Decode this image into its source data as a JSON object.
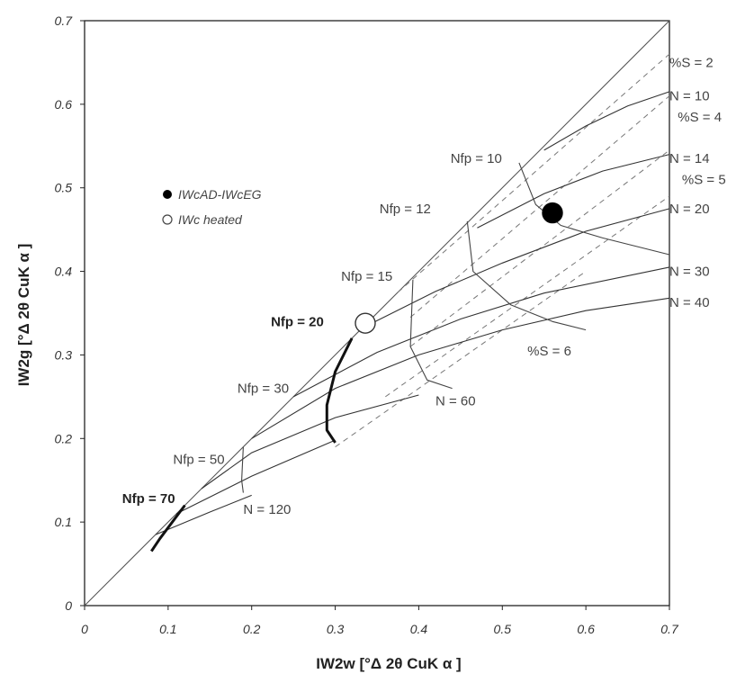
{
  "chart_data": {
    "type": "line",
    "xlabel": "IW2w [°Δ 2θ CuK α ]",
    "ylabel": "IW2g [°Δ 2θ CuK α ]",
    "xlim": [
      0,
      0.7
    ],
    "ylim": [
      0,
      0.7
    ],
    "x_ticks": [
      "0",
      "0.1",
      "0.2",
      "0.3",
      "0.4",
      "0.5",
      "0.6",
      "0.7"
    ],
    "y_ticks": [
      "0",
      "0.1",
      "0.2",
      "0.3",
      "0.4",
      "0.5",
      "0.6",
      "0.7"
    ],
    "grid": false,
    "legend": {
      "placement": "upper-left",
      "entries": [
        {
          "label": "IWcAD-IWcEG",
          "marker": "filled-circle"
        },
        {
          "label": "IWc heated",
          "marker": "open-circle"
        }
      ]
    },
    "series": [
      {
        "name": "IWcAD-IWcEG",
        "style": "filled-marker",
        "x": [
          0.56
        ],
        "y": [
          0.47
        ]
      },
      {
        "name": "IWc heated",
        "style": "open-marker",
        "x": [
          0.336
        ],
        "y": [
          0.338
        ]
      }
    ],
    "reference_lines": [
      {
        "kind": "identity",
        "points": [
          [
            0,
            0
          ],
          [
            0.7,
            0.7
          ]
        ]
      }
    ],
    "n_curves": [
      {
        "label": "N = 10",
        "points": [
          [
            0.55,
            0.545
          ],
          [
            0.6,
            0.574
          ],
          [
            0.65,
            0.598
          ],
          [
            0.7,
            0.615
          ]
        ]
      },
      {
        "label": "N = 14",
        "points": [
          [
            0.47,
            0.452
          ],
          [
            0.55,
            0.493
          ],
          [
            0.62,
            0.52
          ],
          [
            0.7,
            0.54
          ]
        ]
      },
      {
        "label": "N = 20",
        "points": [
          [
            0.34,
            0.336
          ],
          [
            0.42,
            0.376
          ],
          [
            0.5,
            0.41
          ],
          [
            0.6,
            0.448
          ],
          [
            0.7,
            0.475
          ]
        ]
      },
      {
        "label": "N = 30",
        "points": [
          [
            0.25,
            0.25
          ],
          [
            0.35,
            0.303
          ],
          [
            0.45,
            0.343
          ],
          [
            0.55,
            0.374
          ],
          [
            0.7,
            0.405
          ]
        ]
      },
      {
        "label": "N = 40",
        "points": [
          [
            0.2,
            0.2
          ],
          [
            0.3,
            0.26
          ],
          [
            0.4,
            0.3
          ],
          [
            0.5,
            0.33
          ],
          [
            0.6,
            0.353
          ],
          [
            0.7,
            0.368
          ]
        ]
      },
      {
        "label": "",
        "points": [
          [
            0.14,
            0.14
          ],
          [
            0.2,
            0.183
          ],
          [
            0.3,
            0.225
          ],
          [
            0.4,
            0.252
          ]
        ]
      },
      {
        "label": "",
        "points": [
          [
            0.11,
            0.11
          ],
          [
            0.2,
            0.155
          ],
          [
            0.3,
            0.198
          ]
        ]
      },
      {
        "label": "",
        "points": [
          [
            0.085,
            0.085
          ],
          [
            0.15,
            0.112
          ],
          [
            0.2,
            0.132
          ]
        ]
      }
    ],
    "s_lines": [
      {
        "label": "%S = 2",
        "points": [
          [
            0.375,
            0.375
          ],
          [
            0.7,
            0.66
          ]
        ]
      },
      {
        "label": "%S = 4",
        "points": [
          [
            0.39,
            0.345
          ],
          [
            0.7,
            0.61
          ]
        ]
      },
      {
        "label": "%S = 5",
        "points": [
          [
            0.39,
            0.31
          ],
          [
            0.7,
            0.545
          ]
        ]
      },
      {
        "label": "%S = 6",
        "points": [
          [
            0.36,
            0.25
          ],
          [
            0.7,
            0.49
          ]
        ]
      },
      {
        "label": "",
        "points": [
          [
            0.3,
            0.19
          ],
          [
            0.6,
            0.4
          ]
        ]
      }
    ],
    "nfp_curves": [
      {
        "label": "Nfp = 10",
        "points": [
          [
            0.52,
            0.53
          ],
          [
            0.54,
            0.48
          ],
          [
            0.57,
            0.455
          ],
          [
            0.62,
            0.44
          ],
          [
            0.7,
            0.42
          ]
        ]
      },
      {
        "label": "Nfp =  12",
        "points": [
          [
            0.458,
            0.46
          ],
          [
            0.465,
            0.4
          ],
          [
            0.51,
            0.36
          ],
          [
            0.56,
            0.34
          ],
          [
            0.6,
            0.33
          ]
        ]
      },
      {
        "label": "Nfp = 15",
        "points": [
          [
            0.393,
            0.39
          ],
          [
            0.39,
            0.31
          ],
          [
            0.41,
            0.27
          ],
          [
            0.44,
            0.26
          ]
        ]
      },
      {
        "label": "Nfp = 20",
        "bold": true,
        "points": [
          [
            0.32,
            0.32
          ],
          [
            0.3,
            0.28
          ],
          [
            0.29,
            0.24
          ],
          [
            0.29,
            0.21
          ],
          [
            0.3,
            0.195
          ]
        ]
      },
      {
        "label": "Nfp = 30",
        "points": []
      },
      {
        "label": "Nfp = 50",
        "points": [
          [
            0.19,
            0.19
          ],
          [
            0.188,
            0.15
          ],
          [
            0.19,
            0.135
          ]
        ]
      },
      {
        "label": "Nfp = 70",
        "bold": true,
        "points": [
          [
            0.12,
            0.12
          ],
          [
            0.09,
            0.08
          ],
          [
            0.08,
            0.065
          ]
        ]
      }
    ],
    "annotations": [
      {
        "text": "%S = 2",
        "x": 0.7,
        "y": 0.65
      },
      {
        "text": "N = 10",
        "x": 0.7,
        "y": 0.61
      },
      {
        "text": "%S = 4",
        "x": 0.71,
        "y": 0.585
      },
      {
        "text": "N = 14",
        "x": 0.7,
        "y": 0.535
      },
      {
        "text": "%S = 5",
        "x": 0.715,
        "y": 0.51
      },
      {
        "text": "N = 20",
        "x": 0.7,
        "y": 0.475
      },
      {
        "text": "N = 30",
        "x": 0.7,
        "y": 0.4
      },
      {
        "text": "N = 40",
        "x": 0.7,
        "y": 0.363
      },
      {
        "text": "%S = 6",
        "x": 0.53,
        "y": 0.305
      },
      {
        "text": "N = 60",
        "x": 0.42,
        "y": 0.245
      },
      {
        "text": "N = 120",
        "x": 0.19,
        "y": 0.115
      },
      {
        "text": "Nfp = 10",
        "x": 0.438,
        "y": 0.535
      },
      {
        "text": "Nfp =  12",
        "x": 0.353,
        "y": 0.475
      },
      {
        "text": "Nfp = 15",
        "x": 0.307,
        "y": 0.394
      },
      {
        "text": "Nfp = 20",
        "x": 0.223,
        "y": 0.34,
        "bold": true
      },
      {
        "text": "Nfp = 30",
        "x": 0.183,
        "y": 0.26
      },
      {
        "text": "Nfp = 50",
        "x": 0.106,
        "y": 0.175
      },
      {
        "text": "Nfp = 70",
        "x": 0.045,
        "y": 0.128,
        "bold": true
      }
    ]
  }
}
